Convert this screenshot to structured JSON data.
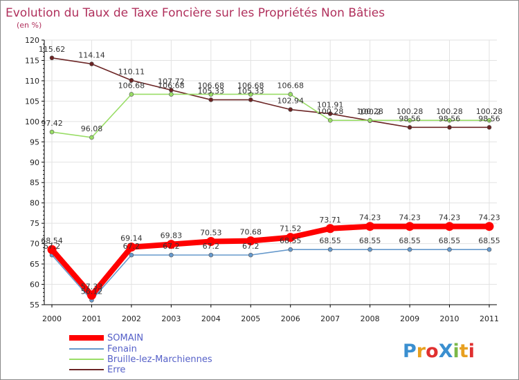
{
  "chart_data": {
    "type": "line",
    "title": "Evolution du Taux de Taxe Foncière sur les Propriétés Non Bâties",
    "unit_label": "(en %)",
    "x": [
      "2000",
      "2001",
      "2002",
      "2003",
      "2004",
      "2005",
      "2006",
      "2007",
      "2008",
      "2009",
      "2010",
      "2011"
    ],
    "ylim": [
      55,
      120
    ],
    "yticks": [
      55,
      60,
      65,
      70,
      75,
      80,
      85,
      90,
      95,
      100,
      105,
      110,
      115,
      120
    ],
    "series": [
      {
        "name": "SOMAIN",
        "color": "#ff0000",
        "values": [
          68.54,
          57.33,
          69.14,
          69.83,
          70.53,
          70.68,
          71.52,
          73.71,
          74.23,
          74.23,
          74.23,
          74.23
        ],
        "labels": [
          "68.54",
          "57.33",
          "69.14",
          "69.83",
          "70.53",
          "70.68",
          "71.52",
          "73.71",
          "74.23",
          "74.23",
          "74.23",
          "74.23"
        ]
      },
      {
        "name": "Fenain",
        "color": "#6699cc",
        "values": [
          67.2,
          56.12,
          67.2,
          67.2,
          67.2,
          67.2,
          68.55,
          68.55,
          68.55,
          68.55,
          68.55,
          68.55
        ],
        "labels": [
          "67.2",
          "56.12",
          "67.2",
          "67.2",
          "67.2",
          "67.2",
          "68.55",
          "68.55",
          "68.55",
          "68.55",
          "68.55",
          "68.55"
        ]
      },
      {
        "name": "Bruille-lez-Marchiennes",
        "color": "#99dd66",
        "values": [
          97.42,
          96.08,
          106.68,
          106.68,
          106.68,
          106.68,
          106.68,
          100.28,
          100.28,
          100.28,
          100.28,
          100.28
        ],
        "labels": [
          "97.42",
          "96.08",
          "106.68",
          "106.68",
          "106.68",
          "106.68",
          "106.68",
          "100.28",
          "100.28",
          "100.28",
          "100.28",
          "100.28"
        ]
      },
      {
        "name": "Erre",
        "color": "#6b2424",
        "values": [
          115.62,
          114.14,
          110.11,
          107.72,
          105.33,
          105.33,
          102.94,
          101.91,
          100.2,
          98.56,
          98.56,
          98.56
        ],
        "labels": [
          "115.62",
          "114.14",
          "110.11",
          "107.72",
          "105.33",
          "105.33",
          "102.94",
          "101.91",
          "100.2",
          "98.56",
          "98.56",
          "98.56"
        ]
      }
    ]
  },
  "brand": {
    "logo_text": "ProXiti"
  }
}
